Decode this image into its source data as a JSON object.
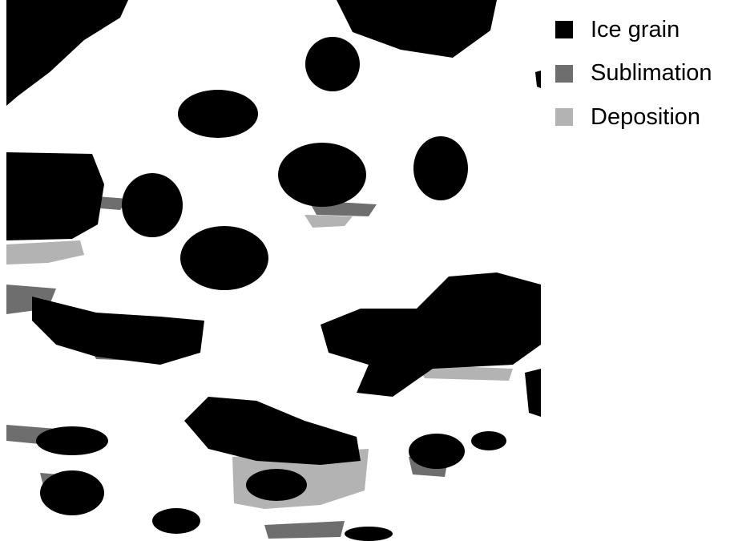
{
  "legend": {
    "items": [
      {
        "label": "Ice grain",
        "color": "#000000"
      },
      {
        "label": "Sublimation",
        "color": "#6e6e6e"
      },
      {
        "label": "Deposition",
        "color": "#b3b3b3"
      }
    ]
  }
}
